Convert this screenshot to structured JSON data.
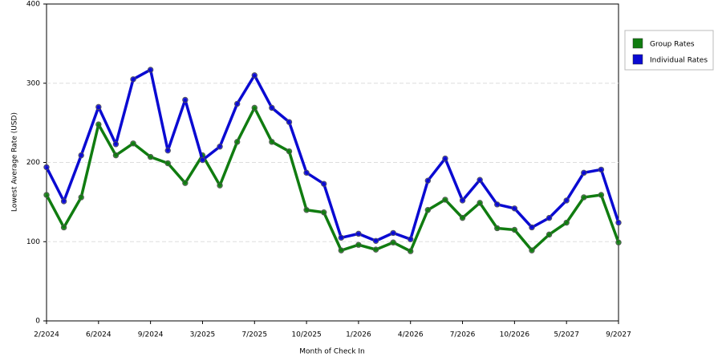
{
  "chart_data": {
    "type": "line",
    "x_label": "Month of Check In",
    "y_label": "Lowest Average Rate (USD)",
    "categories": [
      "2/2024",
      null,
      null,
      "6/2024",
      null,
      null,
      "9/2024",
      null,
      null,
      "3/2025",
      null,
      null,
      "7/2025",
      null,
      null,
      "10/2025",
      null,
      null,
      "1/2026",
      null,
      null,
      "4/2026",
      null,
      null,
      "7/2026",
      null,
      null,
      "10/2026",
      null,
      null,
      "5/2027",
      null,
      null,
      "9/2027"
    ],
    "series": [
      {
        "name": "Group Rates",
        "color": "#107c10",
        "values": [
          159,
          118,
          156,
          248,
          209,
          224,
          207,
          199,
          174,
          209,
          171,
          226,
          269,
          226,
          214,
          140,
          137,
          89,
          96,
          90,
          99,
          88,
          140,
          153,
          130,
          149,
          117,
          115,
          89,
          109,
          124,
          156,
          159,
          99
        ]
      },
      {
        "name": "Individual Rates",
        "color": "#0a0ad2",
        "values": [
          194,
          151,
          209,
          270,
          223,
          305,
          317,
          215,
          279,
          203,
          220,
          274,
          310,
          269,
          251,
          187,
          173,
          105,
          110,
          101,
          111,
          103,
          177,
          205,
          152,
          178,
          147,
          142,
          118,
          130,
          152,
          187,
          191,
          124
        ]
      }
    ],
    "ylim": [
      0,
      400
    ],
    "yticks": [
      0,
      100,
      200,
      300,
      400
    ],
    "grid": true,
    "legend": "right"
  }
}
